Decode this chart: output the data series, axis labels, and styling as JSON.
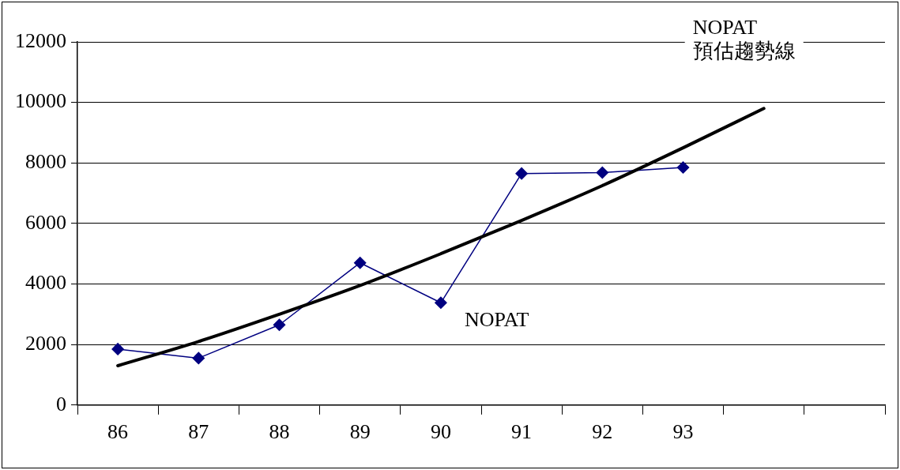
{
  "chart_data": {
    "type": "line",
    "categories": [
      "86",
      "87",
      "88",
      "89",
      "90",
      "91",
      "92",
      "93",
      null,
      null
    ],
    "series": [
      {
        "name": "NOPAT",
        "color": "#000080",
        "marker": "diamond",
        "values": [
          1850,
          1550,
          2650,
          4700,
          3380,
          7650,
          7680,
          7850,
          null,
          null
        ]
      },
      {
        "name": "NOPAT\n預估趨勢線",
        "color": "#000000",
        "marker": "none",
        "values": [
          1300,
          2100,
          3000,
          3950,
          5000,
          6100,
          7250,
          8500,
          9800,
          null
        ]
      }
    ],
    "ylim": [
      0,
      12000
    ],
    "yticks": [
      0,
      2000,
      4000,
      6000,
      8000,
      10000,
      12000
    ],
    "grid": "y",
    "legend": false,
    "line_style": "solid"
  }
}
